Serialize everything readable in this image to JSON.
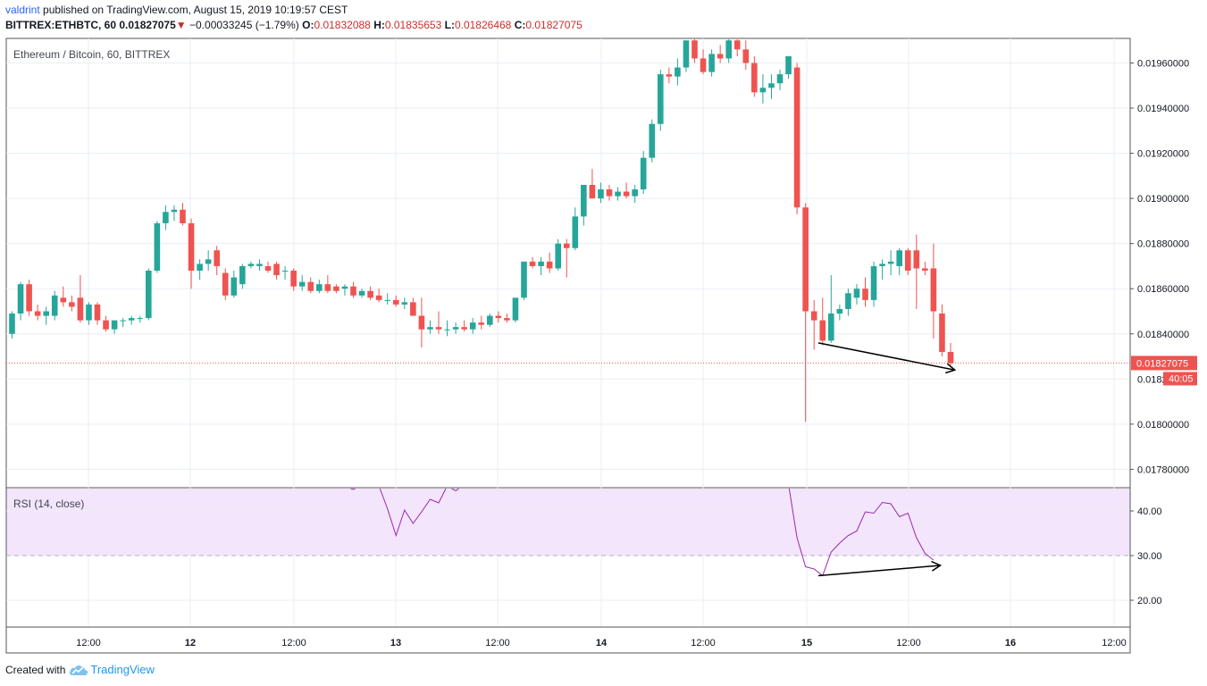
{
  "header": {
    "author": "valdrint",
    "published_text": "published on TradingView.com, August 15, 2019 10:19:57 CEST",
    "symbol": "BITTREX:ETHBTC, 60",
    "last": "0.01827075",
    "change_arrow": "▼",
    "change": "−0.00033245 (−1.79%)",
    "o_label": "O:",
    "o_value": "0.01832088",
    "h_label": "H:",
    "h_value": "0.01835653",
    "l_label": "L:",
    "l_value": "0.01826468",
    "c_label": "C:",
    "c_value": "0.01827075"
  },
  "footer": {
    "created_with": "Created with",
    "brand": "TradingView"
  },
  "colors": {
    "up": "#26a69a",
    "down": "#ef5350",
    "rsi": "#9c27b0",
    "rsi_band": "#f3e5fb",
    "grid": "#e9eef5",
    "price_line": "#ef5350"
  },
  "chart_data": [
    {
      "type": "candlestick",
      "title": "Ethereum / Bitcoin, 60, BITTREX",
      "ylim": [
        0.0177,
        0.0197
      ],
      "y_ticks": [
        "0.01960000",
        "0.01940000",
        "0.01920000",
        "0.01900000",
        "0.01880000",
        "0.01860000",
        "0.01840000",
        "0.01800000",
        "0.01780000"
      ],
      "x_ticks": [
        "12:00",
        "12",
        "12:00",
        "13",
        "12:00",
        "14",
        "12:00",
        "15",
        "12:00",
        "16",
        "12:00"
      ],
      "x_range_hours": [
        -10,
        91
      ],
      "last_price_label": "0.01827075",
      "countdown_label": "40:05",
      "partial_tick_label": "0.0182",
      "candles": [
        [
          0,
          0.0184,
          0.0185,
          0.01838,
          0.01849
        ],
        [
          1,
          0.01849,
          0.01863,
          0.01846,
          0.01862
        ],
        [
          2,
          0.01862,
          0.01864,
          0.01848,
          0.0185
        ],
        [
          3,
          0.0185,
          0.01853,
          0.01846,
          0.01848
        ],
        [
          4,
          0.01848,
          0.01852,
          0.01844,
          0.0185
        ],
        [
          5,
          0.01848,
          0.01859,
          0.01846,
          0.01857
        ],
        [
          6,
          0.01856,
          0.01861,
          0.01852,
          0.01854
        ],
        [
          7,
          0.01854,
          0.01857,
          0.0185,
          0.01852
        ],
        [
          8,
          0.01856,
          0.01866,
          0.01845,
          0.01846
        ],
        [
          9,
          0.01846,
          0.01854,
          0.01844,
          0.01853
        ],
        [
          10,
          0.01853,
          0.01854,
          0.01844,
          0.01846
        ],
        [
          11,
          0.01846,
          0.01848,
          0.01841,
          0.01842
        ],
        [
          12,
          0.01842,
          0.01846,
          0.0184,
          0.01846
        ],
        [
          13,
          0.01846,
          0.01847,
          0.01843,
          0.01846
        ],
        [
          14,
          0.01846,
          0.01848,
          0.01844,
          0.01847
        ],
        [
          15,
          0.01847,
          0.01848,
          0.01845,
          0.01847
        ],
        [
          16,
          0.01847,
          0.01869,
          0.01846,
          0.01868
        ],
        [
          17,
          0.01868,
          0.0189,
          0.01867,
          0.01889
        ],
        [
          18,
          0.01889,
          0.01897,
          0.01886,
          0.01894
        ],
        [
          19,
          0.01894,
          0.01897,
          0.0189,
          0.01895
        ],
        [
          20,
          0.01895,
          0.01898,
          0.01888,
          0.01889
        ],
        [
          21,
          0.01889,
          0.01891,
          0.0186,
          0.01868
        ],
        [
          22,
          0.01868,
          0.01873,
          0.01864,
          0.01871
        ],
        [
          23,
          0.01871,
          0.01877,
          0.01868,
          0.01873
        ],
        [
          24,
          0.01877,
          0.01879,
          0.01866,
          0.0187
        ],
        [
          25,
          0.01867,
          0.01869,
          0.01855,
          0.01857
        ],
        [
          26,
          0.01857,
          0.01868,
          0.01856,
          0.01865
        ],
        [
          27,
          0.01862,
          0.01871,
          0.0186,
          0.0187
        ],
        [
          28,
          0.0187,
          0.01872,
          0.01869,
          0.01871
        ],
        [
          29,
          0.0187,
          0.01873,
          0.01868,
          0.01871
        ],
        [
          30,
          0.0187,
          0.01872,
          0.01867,
          0.01868
        ],
        [
          31,
          0.01871,
          0.01872,
          0.01864,
          0.01866
        ],
        [
          32,
          0.01868,
          0.0187,
          0.01864,
          0.01868
        ],
        [
          33,
          0.01868,
          0.01869,
          0.01859,
          0.01861
        ],
        [
          34,
          0.01861,
          0.01866,
          0.01859,
          0.01863
        ],
        [
          35,
          0.01863,
          0.01865,
          0.01858,
          0.01859
        ],
        [
          36,
          0.01859,
          0.01864,
          0.01858,
          0.01862
        ],
        [
          37,
          0.01862,
          0.01866,
          0.01858,
          0.01859
        ],
        [
          38,
          0.01861,
          0.01862,
          0.01858,
          0.01859
        ],
        [
          39,
          0.0186,
          0.01862,
          0.01857,
          0.01861
        ],
        [
          40,
          0.01861,
          0.01863,
          0.01856,
          0.01857
        ],
        [
          41,
          0.01857,
          0.0186,
          0.01856,
          0.01859
        ],
        [
          42,
          0.01859,
          0.01861,
          0.01855,
          0.01856
        ],
        [
          43,
          0.01857,
          0.0186,
          0.01854,
          0.01855
        ],
        [
          44,
          0.01855,
          0.01858,
          0.01853,
          0.01855
        ],
        [
          45,
          0.01855,
          0.01857,
          0.01852,
          0.01853
        ],
        [
          46,
          0.01853,
          0.01856,
          0.01851,
          0.01854
        ],
        [
          47,
          0.01854,
          0.01856,
          0.01848,
          0.01848
        ],
        [
          48,
          0.01848,
          0.01856,
          0.01834,
          0.01842
        ],
        [
          49,
          0.01842,
          0.01846,
          0.0184,
          0.01843
        ],
        [
          50,
          0.01843,
          0.0185,
          0.0184,
          0.01842
        ],
        [
          51,
          0.01842,
          0.01846,
          0.01839,
          0.01842
        ],
        [
          52,
          0.01842,
          0.01845,
          0.0184,
          0.01843
        ],
        [
          53,
          0.01843,
          0.01846,
          0.01841,
          0.01842
        ],
        [
          54,
          0.01842,
          0.01847,
          0.0184,
          0.01845
        ],
        [
          55,
          0.01845,
          0.01848,
          0.01842,
          0.01844
        ],
        [
          56,
          0.01844,
          0.01849,
          0.01843,
          0.01848
        ],
        [
          57,
          0.01848,
          0.0185,
          0.01845,
          0.01847
        ],
        [
          58,
          0.01847,
          0.01849,
          0.01845,
          0.01846
        ],
        [
          59,
          0.01846,
          0.01856,
          0.01845,
          0.01856
        ],
        [
          60,
          0.01856,
          0.01872,
          0.01855,
          0.01872
        ],
        [
          61,
          0.01872,
          0.01874,
          0.01869,
          0.0187
        ],
        [
          62,
          0.0187,
          0.01874,
          0.01866,
          0.01872
        ],
        [
          63,
          0.01872,
          0.01876,
          0.01867,
          0.01869
        ],
        [
          64,
          0.01869,
          0.01882,
          0.01868,
          0.0188
        ],
        [
          65,
          0.0188,
          0.01882,
          0.01865,
          0.01878
        ],
        [
          66,
          0.01878,
          0.01896,
          0.01877,
          0.01892
        ],
        [
          67,
          0.01892,
          0.01906,
          0.01888,
          0.01906
        ],
        [
          68,
          0.01906,
          0.01913,
          0.019,
          0.019
        ],
        [
          69,
          0.019,
          0.01907,
          0.01898,
          0.01904
        ],
        [
          70,
          0.01904,
          0.01906,
          0.01899,
          0.01901
        ],
        [
          71,
          0.01901,
          0.01905,
          0.01899,
          0.01903
        ],
        [
          72,
          0.01903,
          0.01907,
          0.019,
          0.01901
        ],
        [
          73,
          0.01901,
          0.01906,
          0.01898,
          0.01904
        ],
        [
          74,
          0.01904,
          0.01921,
          0.01902,
          0.01918
        ],
        [
          75,
          0.01918,
          0.01935,
          0.01916,
          0.01933
        ],
        [
          76,
          0.01933,
          0.01957,
          0.0193,
          0.01955
        ],
        [
          77,
          0.01955,
          0.01958,
          0.01951,
          0.01954
        ],
        [
          78,
          0.01954,
          0.01962,
          0.0195,
          0.01958
        ],
        [
          79,
          0.01958,
          0.0197,
          0.01956,
          0.0197
        ],
        [
          80,
          0.0197,
          0.01972,
          0.0196,
          0.01962
        ],
        [
          81,
          0.01962,
          0.01966,
          0.01955,
          0.01956
        ],
        [
          82,
          0.01956,
          0.01966,
          0.01954,
          0.01964
        ],
        [
          83,
          0.01964,
          0.01968,
          0.0196,
          0.01962
        ],
        [
          84,
          0.01962,
          0.01971,
          0.0196,
          0.0197
        ],
        [
          85,
          0.0197,
          0.01972,
          0.01963,
          0.01966
        ],
        [
          86,
          0.01966,
          0.0197,
          0.01957,
          0.0196
        ],
        [
          87,
          0.0196,
          0.01963,
          0.01945,
          0.01947
        ],
        [
          88,
          0.01947,
          0.01955,
          0.01942,
          0.01949
        ],
        [
          89,
          0.01949,
          0.01955,
          0.01944,
          0.01951
        ],
        [
          90,
          0.01951,
          0.01957,
          0.01948,
          0.01955
        ],
        [
          91,
          0.01955,
          0.01962,
          0.01953,
          0.01963
        ],
        [
          92,
          0.01958,
          0.0196,
          0.01893,
          0.01896
        ],
        [
          93,
          0.01896,
          0.01898,
          0.01801,
          0.0185
        ],
        [
          94,
          0.0185,
          0.01855,
          0.01833,
          0.01846
        ],
        [
          95,
          0.01846,
          0.01856,
          0.01835,
          0.01837
        ],
        [
          96,
          0.01837,
          0.01866,
          0.01836,
          0.01849
        ],
        [
          97,
          0.01849,
          0.01853,
          0.01846,
          0.01851
        ],
        [
          98,
          0.01851,
          0.0186,
          0.01848,
          0.01858
        ],
        [
          99,
          0.01856,
          0.01862,
          0.01853,
          0.0186
        ],
        [
          100,
          0.0186,
          0.01865,
          0.01852,
          0.01855
        ],
        [
          101,
          0.01855,
          0.01872,
          0.01852,
          0.0187
        ],
        [
          102,
          0.0187,
          0.01873,
          0.01864,
          0.01871
        ],
        [
          103,
          0.01871,
          0.01877,
          0.01866,
          0.01872
        ],
        [
          104,
          0.0187,
          0.01878,
          0.01866,
          0.01877
        ],
        [
          105,
          0.01877,
          0.01878,
          0.01866,
          0.01868
        ],
        [
          106,
          0.01877,
          0.01884,
          0.01851,
          0.01869
        ],
        [
          107,
          0.01869,
          0.01872,
          0.01866,
          0.01868
        ],
        [
          108,
          0.01869,
          0.0188,
          0.01838,
          0.0185
        ],
        [
          109,
          0.01849,
          0.01853,
          0.0183,
          0.01832
        ],
        [
          110,
          0.01832,
          0.01836,
          0.01826,
          0.01827
        ]
      ],
      "annotation_arrow": {
        "from": [
          94.5,
          0.01836
        ],
        "to": [
          110.5,
          0.01824
        ]
      }
    },
    {
      "type": "line",
      "title": "RSI (14, close)",
      "ylim": [
        14.5,
        45.3
      ],
      "y_ticks": [
        "40.00",
        "30.00",
        "20.00"
      ],
      "band": [
        30,
        70
      ],
      "series": [
        {
          "points": [
            [
              39,
              45.5
            ],
            [
              40,
              44.8
            ],
            [
              41,
              45.8
            ],
            [
              42,
              45.2
            ],
            [
              43,
              45.6
            ],
            [
              44,
              40.5
            ],
            [
              45,
              34.5
            ],
            [
              46,
              40.2
            ],
            [
              47,
              37.2
            ],
            [
              48,
              39.8
            ],
            [
              49,
              42.6
            ],
            [
              50,
              41.8
            ],
            [
              51,
              45.6
            ],
            [
              52,
              44.5
            ],
            [
              53,
              46.0
            ],
            [
              91,
              46.0
            ],
            [
              92,
              34.0
            ],
            [
              93,
              27.5
            ],
            [
              94,
              27.0
            ],
            [
              95,
              25.5
            ],
            [
              96,
              30.8
            ],
            [
              97,
              32.8
            ],
            [
              98,
              34.5
            ],
            [
              99,
              35.5
            ],
            [
              100,
              39.8
            ],
            [
              101,
              39.5
            ],
            [
              102,
              41.9
            ],
            [
              103,
              41.6
            ],
            [
              104,
              38.7
            ],
            [
              105,
              39.5
            ],
            [
              106,
              34.0
            ],
            [
              107,
              30.5
            ],
            [
              108,
              29.0
            ]
          ]
        }
      ],
      "annotation_arrow": {
        "from": [
          94.5,
          25.5
        ],
        "to": [
          108.8,
          27.8
        ]
      }
    }
  ]
}
